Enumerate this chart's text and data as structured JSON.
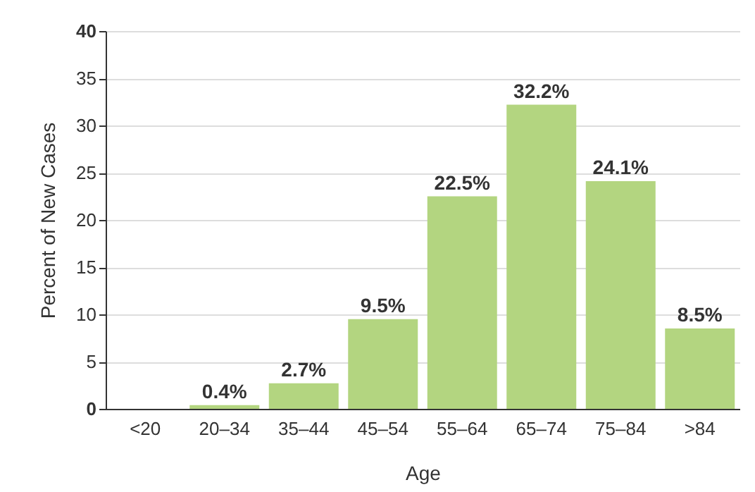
{
  "chart_data": {
    "type": "bar",
    "xlabel": "Age",
    "ylabel": "Percent of New Cases",
    "categories": [
      "<20",
      "20–34",
      "35–44",
      "45–54",
      "55–64",
      "65–74",
      "75–84",
      ">84"
    ],
    "values": [
      0,
      0.4,
      2.7,
      9.5,
      22.5,
      32.2,
      24.1,
      8.5
    ],
    "value_labels": [
      null,
      "0.4%",
      "2.7%",
      "9.5%",
      "22.5%",
      "32.2%",
      "24.1%",
      "8.5%"
    ],
    "color": "#b3d580",
    "ylim": [
      0,
      40
    ],
    "yticks": [
      0,
      5,
      10,
      15,
      20,
      25,
      30,
      35,
      40
    ],
    "grid": "y"
  }
}
